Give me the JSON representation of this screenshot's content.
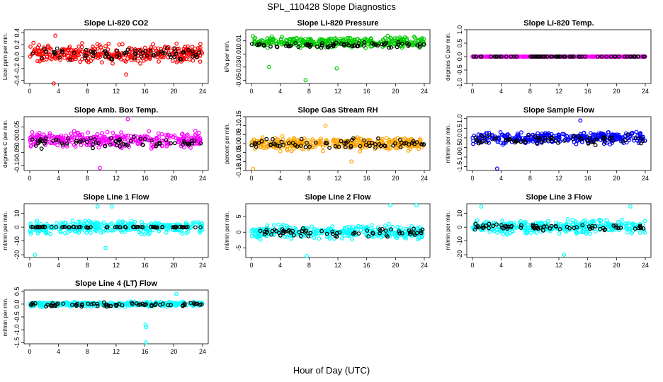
{
  "page": {
    "title": "SPL_110428  Slope Diagnostics",
    "x_axis_title": "Hour of Day (UTC)"
  },
  "chart_data": [
    {
      "type": "scatter",
      "title": "Slope Li-820 CO2",
      "ylabel": "Licor ppm per min.",
      "xlim": [
        0,
        24
      ],
      "x_ticks": [
        "0",
        "4",
        "8",
        "12",
        "16",
        "20",
        "24"
      ],
      "ylim": [
        -0.45,
        0.45
      ],
      "y_ticks": [
        "-0.4",
        "-0.2",
        "0.0",
        "0.2",
        "0.4"
      ],
      "series": [
        {
          "color": "#ff0000",
          "center": 0.05,
          "spread": 0.13,
          "outliers": [
            -0.45,
            0.35,
            -0.3
          ]
        },
        {
          "color": "#000000",
          "center": 0.05,
          "spread": 0.08,
          "outliers": []
        }
      ]
    },
    {
      "type": "scatter",
      "title": "Slope Li-820 Pressure",
      "ylabel": "kPa per min.",
      "xlim": [
        0,
        24
      ],
      "x_ticks": [
        "0",
        "4",
        "8",
        "12",
        "16",
        "20",
        "24"
      ],
      "ylim": [
        -0.055,
        0.027
      ],
      "y_ticks": [
        "-0.05",
        "-0.03",
        "-0.01",
        "0.01"
      ],
      "series": [
        {
          "color": "#00cc00",
          "center": 0.008,
          "spread": 0.007,
          "outliers": [
            -0.05,
            -0.03,
            -0.032
          ]
        },
        {
          "color": "#000000",
          "center": 0.003,
          "spread": 0.004,
          "outliers": []
        }
      ]
    },
    {
      "type": "scatter",
      "title": "Slope Li-820 Temp.",
      "ylabel": "degrees C per min.",
      "xlim": [
        0,
        24
      ],
      "x_ticks": [
        "0",
        "4",
        "8",
        "12",
        "16",
        "20",
        "24"
      ],
      "ylim": [
        -1,
        1
      ],
      "y_ticks": [
        "-1.0",
        "-0.5",
        "0.0",
        "0.5",
        "1.0"
      ],
      "series": [
        {
          "color": "#ff00ff",
          "center": 0.0,
          "spread": 0.0,
          "outliers": []
        },
        {
          "color": "#000000",
          "center": 0.0,
          "spread": 0.0,
          "outliers": []
        }
      ]
    },
    {
      "type": "scatter",
      "title": "Slope Amb. Box Temp.",
      "ylabel": "degrees C per min.",
      "xlim": [
        0,
        24
      ],
      "x_ticks": [
        "0",
        "4",
        "8",
        "12",
        "16",
        "20",
        "24"
      ],
      "ylim": [
        -0.12,
        0.09
      ],
      "y_ticks": [
        "-0.10",
        "-0.05",
        "0.00",
        "0.05"
      ],
      "series": [
        {
          "color": "#ff00ff",
          "center": 0.0,
          "spread": 0.025,
          "outliers": [
            0.08,
            -0.11
          ]
        },
        {
          "color": "#000000",
          "center": -0.01,
          "spread": 0.02,
          "outliers": []
        }
      ]
    },
    {
      "type": "scatter",
      "title": "Slope Gas Stream RH",
      "ylabel": "percent per min.",
      "xlim": [
        0,
        24
      ],
      "x_ticks": [
        "0",
        "4",
        "8",
        "12",
        "16",
        "20",
        "24"
      ],
      "ylim": [
        -0.15,
        0.15
      ],
      "y_ticks": [
        "-0.15",
        "-0.10",
        "-0.05",
        "0.00",
        "0.05",
        "0.10",
        "0.15"
      ],
      "series": [
        {
          "color": "#ffa500",
          "center": 0.0,
          "spread": 0.03,
          "outliers": [
            -0.14,
            0.1,
            -0.1
          ]
        },
        {
          "color": "#000000",
          "center": 0.0,
          "spread": 0.025,
          "outliers": []
        }
      ]
    },
    {
      "type": "scatter",
      "title": "Slope Sample Flow",
      "ylabel": "ml/min per min.",
      "xlim": [
        0,
        24
      ],
      "x_ticks": [
        "0",
        "4",
        "8",
        "12",
        "16",
        "20",
        "24"
      ],
      "ylim": [
        -1.7,
        1.1
      ],
      "y_ticks": [
        "-1.5",
        "-1.0",
        "-0.5",
        "0.0",
        "0.5",
        "1.0"
      ],
      "series": [
        {
          "color": "#0000ff",
          "center": 0.0,
          "spread": 0.25,
          "outliers": [
            -1.6,
            0.9
          ]
        },
        {
          "color": "#000000",
          "center": -0.1,
          "spread": 0.2,
          "outliers": []
        }
      ]
    },
    {
      "type": "scatter",
      "title": "Slope Line 1 Flow",
      "ylabel": "ml/min per min.",
      "xlim": [
        0,
        24
      ],
      "x_ticks": [
        "0",
        "4",
        "8",
        "12",
        "16",
        "20",
        "24"
      ],
      "ylim": [
        -22,
        17
      ],
      "y_ticks": [
        "-20",
        "-10",
        "0",
        "10"
      ],
      "series": [
        {
          "color": "#00ffff",
          "center": 0.0,
          "spread": 4,
          "outliers": [
            15,
            -20,
            15,
            -15
          ]
        },
        {
          "color": "#000000",
          "center": 0.0,
          "spread": 0.3,
          "outliers": []
        }
      ]
    },
    {
      "type": "scatter",
      "title": "Slope Line 2 Flow",
      "ylabel": "ml/min per min.",
      "xlim": [
        0,
        24
      ],
      "x_ticks": [
        "0",
        "4",
        "8",
        "12",
        "16",
        "20",
        "24"
      ],
      "ylim": [
        -8,
        9
      ],
      "y_ticks": [
        "-5",
        "0",
        "5"
      ],
      "series": [
        {
          "color": "#00ffff",
          "center": 0.0,
          "spread": 1.8,
          "outliers": [
            8.5,
            -7.5,
            8.5
          ]
        },
        {
          "color": "#000000",
          "center": 0.0,
          "spread": 1.3,
          "outliers": []
        }
      ]
    },
    {
      "type": "scatter",
      "title": "Slope Line 3 Flow",
      "ylabel": "ml/min per min.",
      "xlim": [
        0,
        24
      ],
      "x_ticks": [
        "0",
        "4",
        "8",
        "12",
        "16",
        "20",
        "24"
      ],
      "ylim": [
        -22,
        17
      ],
      "y_ticks": [
        "-20",
        "-10",
        "0",
        "10"
      ],
      "series": [
        {
          "color": "#00ffff",
          "center": 0.0,
          "spread": 4,
          "outliers": [
            15,
            -20,
            15
          ]
        },
        {
          "color": "#000000",
          "center": 0.0,
          "spread": 2,
          "outliers": []
        }
      ]
    },
    {
      "type": "scatter",
      "title": "Slope Line 4 (LT) Flow",
      "ylabel": "ml/min per min.",
      "xlim": [
        0,
        24
      ],
      "x_ticks": [
        "0",
        "4",
        "8",
        "12",
        "16",
        "20",
        "24"
      ],
      "ylim": [
        -1.55,
        0.55
      ],
      "y_ticks": [
        "-1.5",
        "-1.0",
        "-0.5",
        "0.0",
        "0.5"
      ],
      "series": [
        {
          "color": "#00ffff",
          "center": 0.0,
          "spread": 0.08,
          "outliers": [
            -1.5,
            -0.8,
            0.4,
            -0.9
          ]
        },
        {
          "color": "#000000",
          "center": -0.02,
          "spread": 0.07,
          "outliers": []
        }
      ]
    }
  ]
}
